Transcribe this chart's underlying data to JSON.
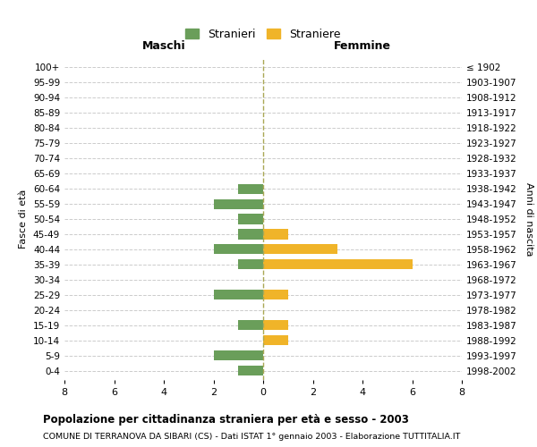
{
  "age_groups": [
    "0-4",
    "5-9",
    "10-14",
    "15-19",
    "20-24",
    "25-29",
    "30-34",
    "35-39",
    "40-44",
    "45-49",
    "50-54",
    "55-59",
    "60-64",
    "65-69",
    "70-74",
    "75-79",
    "80-84",
    "85-89",
    "90-94",
    "95-99",
    "100+"
  ],
  "birth_years": [
    "1998-2002",
    "1993-1997",
    "1988-1992",
    "1983-1987",
    "1978-1982",
    "1973-1977",
    "1968-1972",
    "1963-1967",
    "1958-1962",
    "1953-1957",
    "1948-1952",
    "1943-1947",
    "1938-1942",
    "1933-1937",
    "1928-1932",
    "1923-1927",
    "1918-1922",
    "1913-1917",
    "1908-1912",
    "1903-1907",
    "≤ 1902"
  ],
  "males": [
    1,
    2,
    0,
    1,
    0,
    2,
    0,
    1,
    2,
    1,
    1,
    2,
    1,
    0,
    0,
    0,
    0,
    0,
    0,
    0,
    0
  ],
  "females": [
    0,
    0,
    1,
    1,
    0,
    1,
    0,
    6,
    3,
    1,
    0,
    0,
    0,
    0,
    0,
    0,
    0,
    0,
    0,
    0,
    0
  ],
  "male_color": "#6a9e5a",
  "female_color": "#f0b429",
  "title": "Popolazione per cittadinanza straniera per età e sesso - 2003",
  "subtitle": "COMUNE DI TERRANOVA DA SIBARI (CS) - Dati ISTAT 1° gennaio 2003 - Elaborazione TUTTITALIA.IT",
  "xlabel_left": "Maschi",
  "xlabel_right": "Femmine",
  "ylabel_left": "Fasce di età",
  "ylabel_right": "Anni di nascita",
  "legend_male": "Stranieri",
  "legend_female": "Straniere",
  "xlim": 8,
  "bg_color": "#ffffff",
  "grid_color": "#cccccc"
}
